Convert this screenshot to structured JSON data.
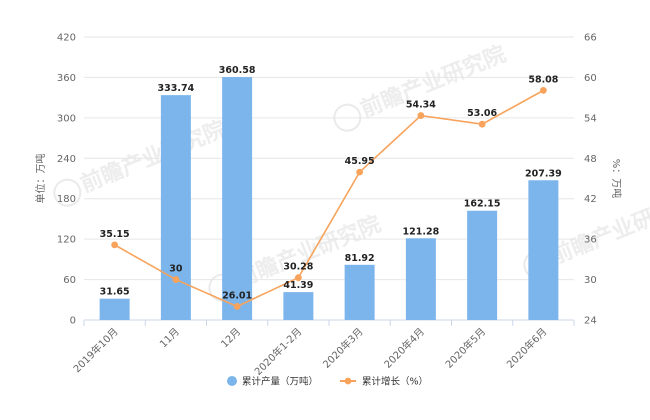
{
  "chart_data": {
    "type": "bar",
    "categories": [
      "2019年10月",
      "11月",
      "12月",
      "2020年1-2月",
      "2020年3月",
      "2020年4月",
      "2020年5月",
      "2020年6月"
    ],
    "series": [
      {
        "name": "累计产量（万吨）",
        "type": "bar",
        "axis": "left",
        "color": "#7cb5ec",
        "values": [
          31.65,
          333.74,
          360.58,
          41.39,
          81.92,
          121.28,
          162.15,
          207.39
        ],
        "labels": [
          "31.65",
          "333.74",
          "360.58",
          "41.39",
          "81.92",
          "121.28",
          "162.15",
          "207.39"
        ]
      },
      {
        "name": "累计增长（%）",
        "type": "line",
        "axis": "right",
        "color": "#f7a35c",
        "values": [
          35.15,
          30,
          26.01,
          30.28,
          45.95,
          54.34,
          53.06,
          58.08
        ],
        "labels": [
          "35.15",
          "30",
          "26.01",
          "30.28",
          "45.95",
          "54.34",
          "53.06",
          "58.08"
        ]
      }
    ],
    "y_left": {
      "label": "单位：万吨",
      "ylim": [
        0,
        420
      ],
      "ticks": [
        "0",
        "60",
        "120",
        "180",
        "240",
        "300",
        "360",
        "420"
      ]
    },
    "y_right": {
      "label": "%：万吨",
      "ylim": [
        24,
        66
      ],
      "ticks": [
        "24",
        "30",
        "36",
        "42",
        "48",
        "54",
        "60",
        "66"
      ]
    },
    "grid": true,
    "legend": "bottom-center",
    "watermark": "前瞻产业研究院"
  }
}
